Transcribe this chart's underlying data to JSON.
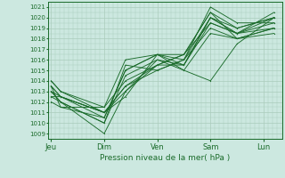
{
  "bg_color": "#cce8e0",
  "grid_color": "#aaccbc",
  "line_color": "#1a6b2a",
  "dot_color": "#1a6b2a",
  "ylabel_values": [
    1009,
    1010,
    1011,
    1012,
    1013,
    1014,
    1015,
    1016,
    1017,
    1018,
    1019,
    1020,
    1021
  ],
  "ylim": [
    1008.5,
    1021.5
  ],
  "xlabel": "Pression niveau de la mer( hPa )",
  "xtick_labels": [
    "Jeu",
    "Dim",
    "Ven",
    "Sam",
    "Lun"
  ],
  "xtick_positions": [
    0,
    1,
    2,
    3,
    4
  ],
  "xlim": [
    -0.05,
    4.35
  ],
  "series": [
    {
      "x": [
        0.0,
        0.18,
        1.0,
        1.4,
        2.0,
        2.5,
        3.0,
        3.5,
        4.2
      ],
      "y": [
        1014.0,
        1013.0,
        1011.5,
        1014.0,
        1015.5,
        1016.5,
        1020.5,
        1019.0,
        1020.0
      ]
    },
    {
      "x": [
        0.0,
        0.18,
        1.0,
        1.4,
        2.0,
        2.5,
        3.0,
        3.5,
        4.2
      ],
      "y": [
        1013.5,
        1012.5,
        1011.0,
        1013.5,
        1015.0,
        1016.0,
        1021.0,
        1019.5,
        1019.5
      ]
    },
    {
      "x": [
        0.0,
        0.18,
        1.0,
        1.4,
        2.0,
        2.5,
        3.0,
        3.5,
        4.2
      ],
      "y": [
        1013.0,
        1012.0,
        1009.0,
        1013.0,
        1016.0,
        1015.5,
        1020.0,
        1018.5,
        1020.0
      ]
    },
    {
      "x": [
        0.0,
        0.18,
        1.0,
        1.4,
        2.0,
        2.5,
        3.0,
        3.5,
        4.2
      ],
      "y": [
        1013.5,
        1012.5,
        1011.0,
        1013.0,
        1015.5,
        1016.5,
        1020.5,
        1018.0,
        1019.0
      ]
    },
    {
      "x": [
        0.0,
        0.18,
        1.0,
        1.4,
        2.0,
        2.5,
        3.0,
        3.5,
        4.2
      ],
      "y": [
        1013.0,
        1012.0,
        1010.0,
        1014.5,
        1016.0,
        1015.0,
        1014.0,
        1017.5,
        1020.0
      ]
    },
    {
      "x": [
        0.0,
        0.18,
        1.0,
        1.4,
        2.0,
        2.5,
        3.0,
        3.5,
        4.2
      ],
      "y": [
        1014.0,
        1013.0,
        1011.0,
        1012.5,
        1016.5,
        1016.0,
        1020.0,
        1019.0,
        1020.0
      ]
    },
    {
      "x": [
        0.0,
        0.18,
        1.0,
        1.4,
        2.0,
        2.5,
        3.0,
        3.5,
        4.2
      ],
      "y": [
        1013.5,
        1011.5,
        1010.5,
        1015.0,
        1016.5,
        1016.5,
        1019.5,
        1018.5,
        1019.5
      ]
    },
    {
      "x": [
        0.0,
        0.18,
        1.0,
        1.4,
        2.0,
        2.5,
        3.0,
        3.5,
        4.2
      ],
      "y": [
        1012.5,
        1012.0,
        1010.0,
        1015.5,
        1015.0,
        1016.0,
        1019.0,
        1018.0,
        1019.0
      ]
    },
    {
      "x": [
        0.0,
        0.18,
        1.0,
        1.4,
        2.0,
        2.5,
        3.0,
        3.5,
        4.2
      ],
      "y": [
        1012.0,
        1011.5,
        1011.5,
        1016.0,
        1016.5,
        1015.5,
        1020.0,
        1018.5,
        1020.5
      ]
    },
    {
      "x": [
        0.0,
        0.18,
        1.0,
        1.4,
        2.0,
        2.5,
        3.0,
        3.5,
        4.2
      ],
      "y": [
        1012.5,
        1012.5,
        1010.5,
        1015.0,
        1016.5,
        1015.0,
        1018.5,
        1018.0,
        1018.5
      ]
    },
    {
      "x": [
        0.0,
        0.18,
        1.0,
        1.4,
        2.0,
        2.5,
        3.0,
        3.5,
        4.2
      ],
      "y": [
        1013.0,
        1012.5,
        1011.0,
        1013.5,
        1015.5,
        1015.5,
        1019.5,
        1018.5,
        1019.0
      ]
    }
  ]
}
